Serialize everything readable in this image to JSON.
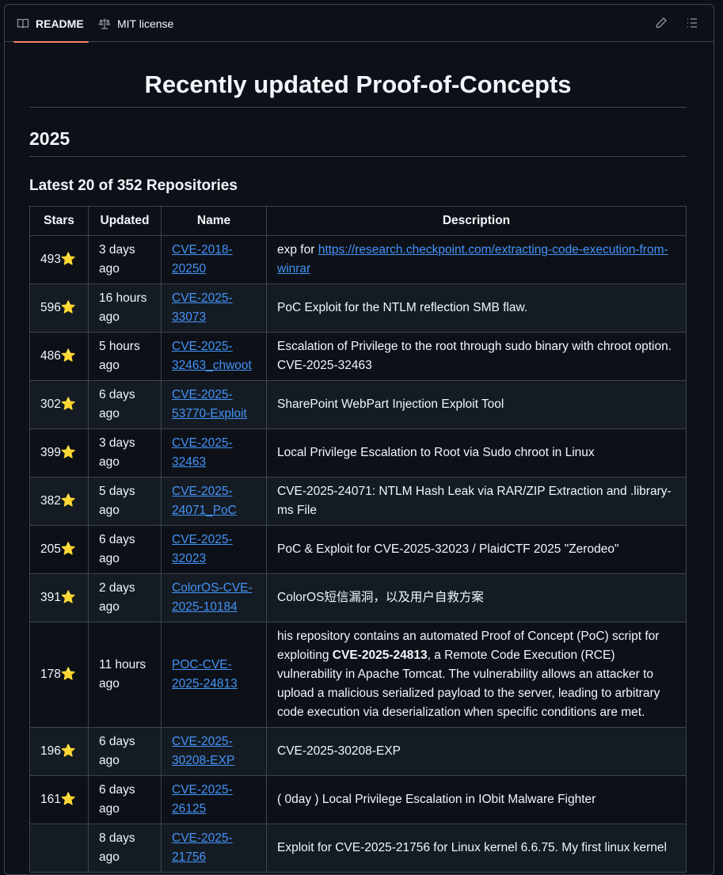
{
  "tabs": {
    "readme": "README",
    "license": "MIT license"
  },
  "icons": {
    "readme": "book-icon",
    "license": "law-icon",
    "edit": "pencil-icon",
    "outline": "list-icon"
  },
  "colors": {
    "accent": "#f78166",
    "link": "#4493f8",
    "star": "#f7c948"
  },
  "title": "Recently updated Proof-of-Concepts",
  "year": "2025",
  "subtitle": "Latest 20 of 352 Repositories",
  "table": {
    "headers": [
      "Stars",
      "Updated",
      "Name",
      "Description"
    ],
    "rows": [
      {
        "stars": "493",
        "star": "⭐",
        "updated": "3 days ago",
        "name": "CVE-2018-20250",
        "desc": [
          {
            "t": "exp for "
          },
          {
            "t": "https://research.checkpoint.com/extracting-code-execution-from-winrar",
            "link": true
          }
        ]
      },
      {
        "stars": "596",
        "star": "⭐",
        "updated": "16 hours ago",
        "name": "CVE-2025-33073",
        "desc": [
          {
            "t": "PoC Exploit for the NTLM reflection SMB flaw."
          }
        ]
      },
      {
        "stars": "486",
        "star": "⭐",
        "updated": "5 hours ago",
        "name": "CVE-2025-32463_chwoot",
        "desc": [
          {
            "t": "Escalation of Privilege to the root through sudo binary with chroot option. CVE-2025-32463"
          }
        ]
      },
      {
        "stars": "302",
        "star": "⭐",
        "updated": "6 days ago",
        "name": "CVE-2025-53770-Exploit",
        "desc": [
          {
            "t": "SharePoint WebPart Injection Exploit Tool"
          }
        ]
      },
      {
        "stars": "399",
        "star": "⭐",
        "updated": "3 days ago",
        "name": "CVE-2025-32463",
        "desc": [
          {
            "t": "Local Privilege Escalation to Root via Sudo chroot in Linux"
          }
        ]
      },
      {
        "stars": "382",
        "star": "⭐",
        "updated": "5 days ago",
        "name": "CVE-2025-24071_PoC",
        "desc": [
          {
            "t": "CVE-2025-24071: NTLM Hash Leak via RAR/ZIP Extraction and .library-ms File"
          }
        ]
      },
      {
        "stars": "205",
        "star": "⭐",
        "updated": "6 days ago",
        "name": "CVE-2025-32023",
        "desc": [
          {
            "t": "PoC & Exploit for CVE-2025-32023 / PlaidCTF 2025 \"Zerodeo\""
          }
        ]
      },
      {
        "stars": "391",
        "star": "⭐",
        "updated": "2 days ago",
        "name": "ColorOS-CVE-2025-10184",
        "desc": [
          {
            "t": "ColorOS短信漏洞，以及用户自救方案"
          }
        ]
      },
      {
        "stars": "178",
        "star": "⭐",
        "updated": "11 hours ago",
        "name": "POC-CVE-2025-24813",
        "desc": [
          {
            "t": "his repository contains an automated Proof of Concept (PoC) script for exploiting "
          },
          {
            "t": "CVE-2025-24813",
            "bold": true
          },
          {
            "t": ", a Remote Code Execution (RCE) vulnerability in Apache Tomcat. The vulnerability allows an attacker to upload a malicious serialized payload to the server, leading to arbitrary code execution via deserialization when specific conditions are met."
          }
        ]
      },
      {
        "stars": "196",
        "star": "⭐",
        "updated": "6 days ago",
        "name": "CVE-2025-30208-EXP",
        "desc": [
          {
            "t": "CVE-2025-30208-EXP"
          }
        ]
      },
      {
        "stars": "161",
        "star": "⭐",
        "updated": "6 days ago",
        "name": "CVE-2025-26125",
        "desc": [
          {
            "t": "( 0day ) Local Privilege Escalation in IObit Malware Fighter"
          }
        ]
      },
      {
        "stars": "",
        "star": "",
        "updated": "8 days ago",
        "name": "CVE-2025-21756",
        "desc": [
          {
            "t": "Exploit for CVE-2025-21756 for Linux kernel 6.6.75. My first linux kernel"
          }
        ]
      }
    ]
  }
}
